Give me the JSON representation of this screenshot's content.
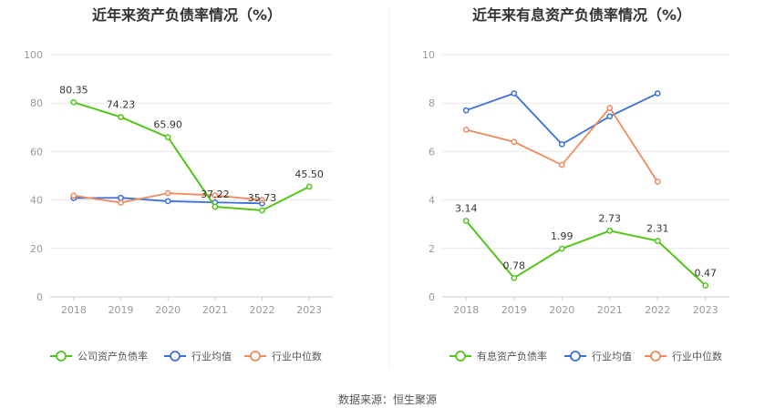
{
  "source": "数据来源：恒生聚源",
  "colors": {
    "company": "#52c41a",
    "average": "#3b6fd8",
    "median": "#f08a5d",
    "grid": "#e8e8e8",
    "axis": "#cccccc"
  },
  "chart_data": [
    {
      "type": "line",
      "title": "近年来资产负债率情况（%）",
      "categories": [
        "2018",
        "2019",
        "2020",
        "2021",
        "2022",
        "2023"
      ],
      "ylim": [
        0,
        100
      ],
      "yticks": [
        "0",
        "20",
        "40",
        "60",
        "80",
        "100"
      ],
      "grid": true,
      "legend_position": "bottom",
      "series": [
        {
          "name": "公司资产负债率",
          "key": "company",
          "values": [
            80.35,
            74.23,
            65.9,
            37.22,
            35.73,
            45.5
          ],
          "labels": [
            "80.35",
            "74.23",
            "65.90",
            "37.22",
            "35.73",
            "45.50"
          ]
        },
        {
          "name": "行业均值",
          "key": "average",
          "values": [
            40.8,
            40.9,
            39.5,
            39.0,
            38.6,
            null
          ]
        },
        {
          "name": "行业中位数",
          "key": "median",
          "values": [
            41.8,
            38.9,
            42.8,
            41.9,
            40.0,
            null
          ]
        }
      ]
    },
    {
      "type": "line",
      "title": "近年来有息资产负债率情况（%）",
      "categories": [
        "2018",
        "2019",
        "2020",
        "2021",
        "2022",
        "2023"
      ],
      "ylim": [
        0,
        10
      ],
      "yticks": [
        "0",
        "2",
        "4",
        "6",
        "8",
        "10"
      ],
      "grid": true,
      "legend_position": "bottom",
      "series": [
        {
          "name": "有息资产负债率",
          "key": "company",
          "values": [
            3.14,
            0.78,
            1.99,
            2.73,
            2.31,
            0.47
          ],
          "labels": [
            "3.14",
            "0.78",
            "1.99",
            "2.73",
            "2.31",
            "0.47"
          ]
        },
        {
          "name": "行业均值",
          "key": "average",
          "values": [
            7.7,
            8.4,
            6.3,
            7.45,
            8.4,
            null
          ]
        },
        {
          "name": "行业中位数",
          "key": "median",
          "values": [
            6.9,
            6.4,
            5.45,
            7.8,
            4.75,
            null
          ]
        }
      ]
    }
  ]
}
